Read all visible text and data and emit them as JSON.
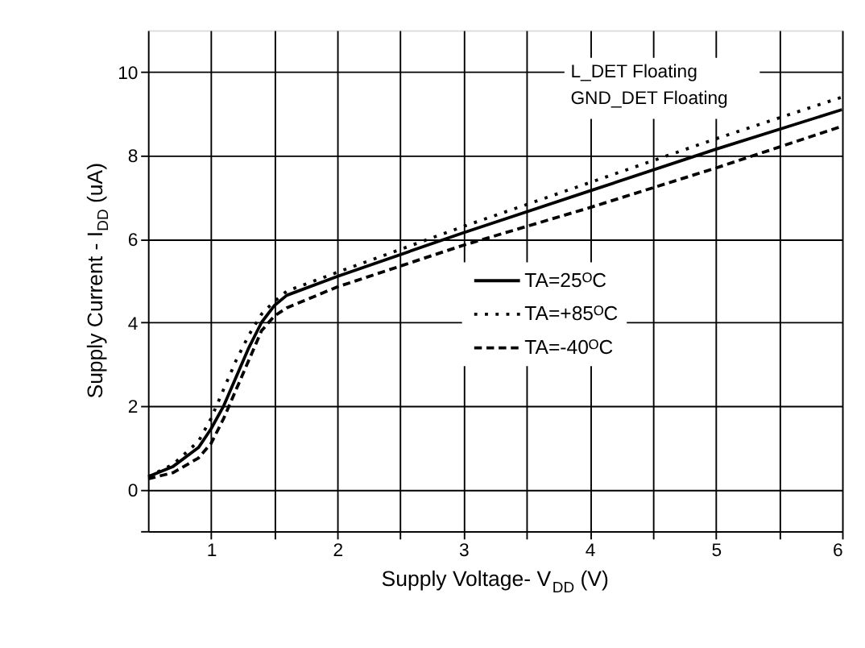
{
  "chart_data": {
    "type": "line",
    "xlabel": "Supply Voltage- V$_{DD}$ (V)",
    "ylabel": "Supply Current - I$_{DD}$ (uA)",
    "xlim": [
      0.5,
      6
    ],
    "ylim": [
      -1,
      11
    ],
    "xticks": [
      1,
      {
        "value": 1.5,
        "label": null
      },
      2,
      {
        "value": 2.5,
        "label": null
      },
      3,
      {
        "value": 3.5,
        "label": null
      },
      4,
      {
        "value": 4.5,
        "label": null
      },
      5,
      {
        "value": 5.5,
        "label": null
      },
      6
    ],
    "yticks": [
      {
        "value": -1,
        "label": null
      },
      0,
      2,
      4,
      6,
      8,
      10
    ],
    "grid": true,
    "legend": "center right",
    "marker": "none",
    "annotations": [
      "L_DET Floating",
      "GND_DET Floating"
    ],
    "x": [
      0.5,
      0.7,
      0.9,
      1.0,
      1.1,
      1.2,
      1.3,
      1.4,
      1.5,
      1.6,
      2,
      3,
      4,
      5,
      6
    ],
    "series": [
      {
        "name": "TA=25ᴼC",
        "color": "#000000",
        "line_style": "solid",
        "values": [
          0.3,
          0.55,
          1.0,
          1.45,
          2.0,
          2.7,
          3.4,
          4.0,
          4.4,
          4.65,
          5.1,
          6.15,
          7.15,
          8.15,
          9.1
        ]
      },
      {
        "name": "TA=+85ᴼC",
        "color": "#000000",
        "line_style": "dotted",
        "values": [
          0.3,
          0.6,
          1.15,
          1.7,
          2.4,
          3.1,
          3.7,
          4.2,
          4.5,
          4.75,
          5.2,
          6.3,
          7.35,
          8.4,
          9.4
        ]
      },
      {
        "name": "TA=-40ᴼC",
        "color": "#000000",
        "line_style": "dashed",
        "values": [
          0.25,
          0.4,
          0.75,
          1.1,
          1.7,
          2.4,
          3.1,
          3.8,
          4.15,
          4.35,
          4.85,
          5.85,
          6.75,
          7.7,
          8.7
        ]
      }
    ]
  }
}
